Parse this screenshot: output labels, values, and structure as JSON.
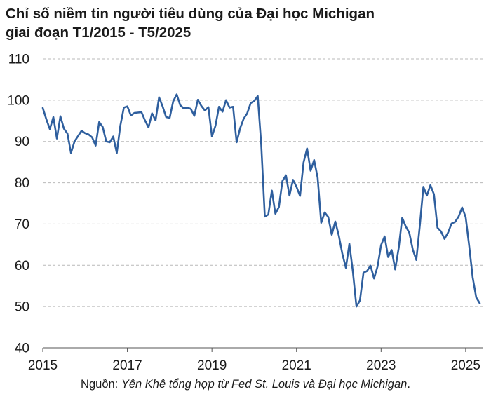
{
  "chart_data": {
    "type": "line",
    "title": "Chỉ số niềm tin người tiêu dùng của Đại học Michigan",
    "subtitle": "giai đoạn T1/2015 - T5/2025",
    "xlabel": "",
    "ylabel": "",
    "xlim": [
      2015,
      2025.4
    ],
    "ylim": [
      40,
      110
    ],
    "yticks": [
      "40",
      "50",
      "60",
      "70",
      "80",
      "90",
      "100",
      "110"
    ],
    "xticks": [
      "2015",
      "2017",
      "2019",
      "2021",
      "2023",
      "2025"
    ],
    "grid": "horizontal dashed",
    "line_color": "#2f5f9e",
    "series": [
      {
        "x": [
          "2015-01",
          "2015-02",
          "2015-03",
          "2015-04",
          "2015-05",
          "2015-06",
          "2015-07",
          "2015-08",
          "2015-09",
          "2015-10",
          "2015-11",
          "2015-12",
          "2016-01",
          "2016-02",
          "2016-03",
          "2016-04",
          "2016-05",
          "2016-06",
          "2016-07",
          "2016-08",
          "2016-09",
          "2016-10",
          "2016-11",
          "2016-12",
          "2017-01",
          "2017-02",
          "2017-03",
          "2017-04",
          "2017-05",
          "2017-06",
          "2017-07",
          "2017-08",
          "2017-09",
          "2017-10",
          "2017-11",
          "2017-12",
          "2018-01",
          "2018-02",
          "2018-03",
          "2018-04",
          "2018-05",
          "2018-06",
          "2018-07",
          "2018-08",
          "2018-09",
          "2018-10",
          "2018-11",
          "2018-12",
          "2019-01",
          "2019-02",
          "2019-03",
          "2019-04",
          "2019-05",
          "2019-06",
          "2019-07",
          "2019-08",
          "2019-09",
          "2019-10",
          "2019-11",
          "2019-12",
          "2020-01",
          "2020-02",
          "2020-03",
          "2020-04",
          "2020-05",
          "2020-06",
          "2020-07",
          "2020-08",
          "2020-09",
          "2020-10",
          "2020-11",
          "2020-12",
          "2021-01",
          "2021-02",
          "2021-03",
          "2021-04",
          "2021-05",
          "2021-06",
          "2021-07",
          "2021-08",
          "2021-09",
          "2021-10",
          "2021-11",
          "2021-12",
          "2022-01",
          "2022-02",
          "2022-03",
          "2022-04",
          "2022-05",
          "2022-06",
          "2022-07",
          "2022-08",
          "2022-09",
          "2022-10",
          "2022-11",
          "2022-12",
          "2023-01",
          "2023-02",
          "2023-03",
          "2023-04",
          "2023-05",
          "2023-06",
          "2023-07",
          "2023-08",
          "2023-09",
          "2023-10",
          "2023-11",
          "2023-12",
          "2024-01",
          "2024-02",
          "2024-03",
          "2024-04",
          "2024-05",
          "2024-06",
          "2024-07",
          "2024-08",
          "2024-09",
          "2024-10",
          "2024-11",
          "2024-12",
          "2025-01",
          "2025-02",
          "2025-03",
          "2025-04",
          "2025-05"
        ],
        "values": [
          98.1,
          95.4,
          93.0,
          95.9,
          90.7,
          96.1,
          93.1,
          91.9,
          87.2,
          90.0,
          91.3,
          92.6,
          92.0,
          91.7,
          91.0,
          89.0,
          94.7,
          93.5,
          90.0,
          89.8,
          91.2,
          87.2,
          93.8,
          98.2,
          98.5,
          96.3,
          96.9,
          97.0,
          97.1,
          95.1,
          93.4,
          96.8,
          95.1,
          100.7,
          98.5,
          95.9,
          95.7,
          99.7,
          101.4,
          98.8,
          98.0,
          98.2,
          97.9,
          96.2,
          100.1,
          98.6,
          97.5,
          98.3,
          91.2,
          93.8,
          98.4,
          97.2,
          100.0,
          98.2,
          98.4,
          89.8,
          93.2,
          95.5,
          96.8,
          99.3,
          99.8,
          101.0,
          89.1,
          71.8,
          72.3,
          78.1,
          72.5,
          74.1,
          80.4,
          81.8,
          76.9,
          80.7,
          79.0,
          76.8,
          84.9,
          88.3,
          82.9,
          85.5,
          81.2,
          70.3,
          72.8,
          71.7,
          67.4,
          70.6,
          67.2,
          62.8,
          59.4,
          65.2,
          58.4,
          50.0,
          51.5,
          58.2,
          58.6,
          59.9,
          56.8,
          59.7,
          64.9,
          67.0,
          62.0,
          63.7,
          59.0,
          64.2,
          71.5,
          69.4,
          67.9,
          63.8,
          61.3,
          69.7,
          79.0,
          76.9,
          79.4,
          77.2,
          69.1,
          68.2,
          66.4,
          67.9,
          70.1,
          70.5,
          71.8,
          74.0,
          71.7,
          64.7,
          57.0,
          52.2,
          50.8
        ]
      }
    ]
  },
  "source": {
    "prefix": "Nguồn: ",
    "text": "Yên Khê tổng hợp từ Fed St. Louis và Đại học Michigan",
    "suffix": "."
  }
}
